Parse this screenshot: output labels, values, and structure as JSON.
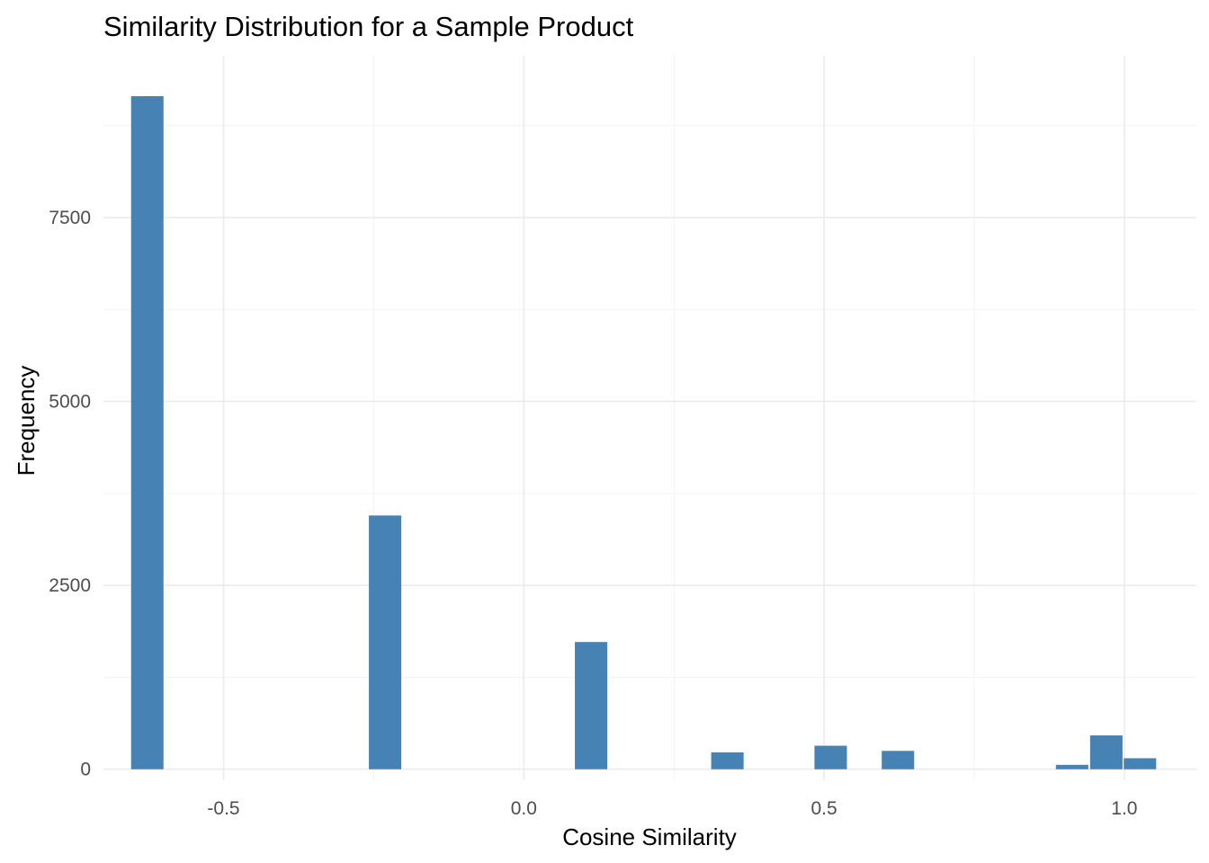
{
  "chart_data": {
    "type": "bar",
    "subtype": "histogram",
    "title": "Similarity Distribution for a Sample Product",
    "xlabel": "Cosine Similarity",
    "ylabel": "Frequency",
    "xlim": [
      -0.7,
      1.12
    ],
    "ylim": [
      -150,
      9700
    ],
    "x_ticks": [
      -0.5,
      0.0,
      0.5,
      1.0
    ],
    "x_tick_labels": [
      "-0.5",
      "0.0",
      "0.5",
      "1.0"
    ],
    "y_ticks": [
      0,
      2500,
      5000,
      7500
    ],
    "y_tick_labels": [
      "0",
      "2500",
      "5000",
      "7500"
    ],
    "bin_width": 0.054,
    "bins": [
      {
        "x": -0.627,
        "count": 9150
      },
      {
        "x": -0.231,
        "count": 3450
      },
      {
        "x": 0.112,
        "count": 1730
      },
      {
        "x": 0.339,
        "count": 230
      },
      {
        "x": 0.511,
        "count": 320
      },
      {
        "x": 0.623,
        "count": 250
      },
      {
        "x": 0.913,
        "count": 60
      },
      {
        "x": 0.97,
        "count": 460
      },
      {
        "x": 1.026,
        "count": 150
      }
    ],
    "color": "#4682B4",
    "grid": true,
    "legend": "none"
  }
}
